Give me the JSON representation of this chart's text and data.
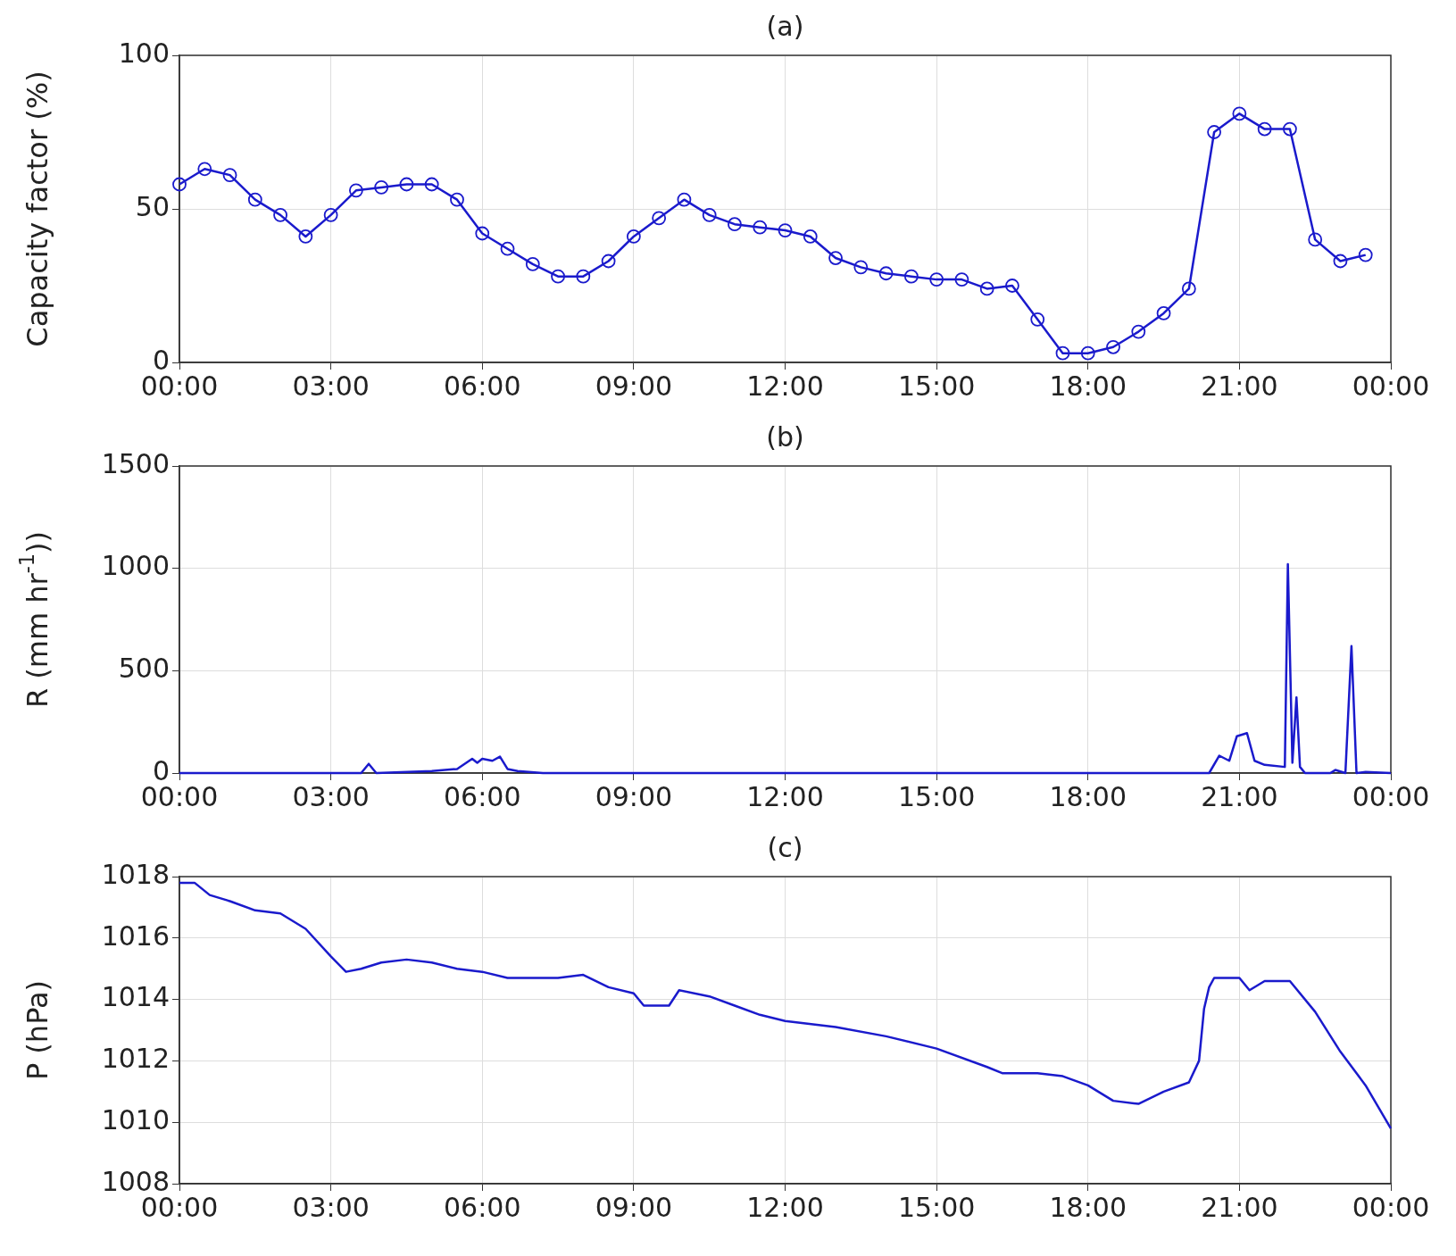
{
  "chart_data": [
    {
      "type": "line",
      "title": "(a)",
      "ylabel": "Capacity factor (%)",
      "xlim": [
        0,
        24
      ],
      "xticks": [
        {
          "value": 0,
          "label": "00:00"
        },
        {
          "value": 3,
          "label": "03:00"
        },
        {
          "value": 6,
          "label": "06:00"
        },
        {
          "value": 9,
          "label": "09:00"
        },
        {
          "value": 12,
          "label": "12:00"
        },
        {
          "value": 15,
          "label": "15:00"
        },
        {
          "value": 18,
          "label": "18:00"
        },
        {
          "value": 21,
          "label": "21:00"
        },
        {
          "value": 24,
          "label": "00:00"
        }
      ],
      "ylim": [
        0,
        100
      ],
      "yticks": [
        0,
        50,
        100
      ],
      "grid": true,
      "marker": "circle",
      "x": [
        0,
        0.5,
        1,
        1.5,
        2,
        2.5,
        3,
        3.5,
        4,
        4.5,
        5,
        5.5,
        6,
        6.5,
        7,
        7.5,
        8,
        8.5,
        9,
        9.5,
        10,
        10.5,
        11,
        11.5,
        12,
        12.5,
        13,
        13.5,
        14,
        14.5,
        15,
        15.5,
        16,
        16.5,
        17,
        17.5,
        18,
        18.5,
        19,
        19.5,
        20,
        20.5,
        21,
        21.5,
        22,
        22.5,
        23,
        23.5
      ],
      "series": [
        {
          "color": "#1a1acc",
          "values": [
            58,
            63,
            61,
            53,
            48,
            41,
            48,
            56,
            57,
            58,
            58,
            53,
            42,
            37,
            32,
            28,
            28,
            33,
            41,
            47,
            53,
            48,
            45,
            44,
            43,
            41,
            34,
            31,
            29,
            28,
            27,
            27,
            24,
            25,
            14,
            3,
            3,
            5,
            10,
            16,
            24,
            75,
            81,
            76,
            76,
            40,
            33,
            35
          ]
        }
      ]
    },
    {
      "type": "line",
      "title": "(b)",
      "ylabel": "R (mm hr$^{-1}$))",
      "xlim": [
        0,
        24
      ],
      "xticks": [
        {
          "value": 0,
          "label": "00:00"
        },
        {
          "value": 3,
          "label": "03:00"
        },
        {
          "value": 6,
          "label": "06:00"
        },
        {
          "value": 9,
          "label": "09:00"
        },
        {
          "value": 12,
          "label": "12:00"
        },
        {
          "value": 15,
          "label": "15:00"
        },
        {
          "value": 18,
          "label": "18:00"
        },
        {
          "value": 21,
          "label": "21:00"
        },
        {
          "value": 24,
          "label": "00:00"
        }
      ],
      "ylim": [
        0,
        1500
      ],
      "yticks": [
        0,
        500,
        1000,
        1500
      ],
      "grid": true,
      "marker": "none",
      "x": [
        0,
        2.5,
        3.6,
        3.75,
        3.9,
        5,
        5.5,
        5.8,
        5.9,
        6.0,
        6.2,
        6.35,
        6.5,
        6.7,
        7.2,
        7.5,
        12,
        16,
        20.4,
        20.6,
        20.8,
        20.95,
        21.15,
        21.3,
        21.5,
        21.9,
        21.96,
        22.05,
        22.13,
        22.2,
        22.3,
        22.8,
        22.9,
        23.1,
        23.22,
        23.32,
        23.5,
        24
      ],
      "series": [
        {
          "color": "#1a1acc",
          "values": [
            0,
            0,
            0,
            45,
            0,
            10,
            20,
            70,
            50,
            70,
            60,
            80,
            20,
            10,
            0,
            0,
            0,
            0,
            0,
            85,
            60,
            180,
            195,
            60,
            40,
            30,
            1020,
            50,
            370,
            30,
            0,
            0,
            15,
            0,
            620,
            0,
            5,
            0
          ]
        }
      ]
    },
    {
      "type": "line",
      "title": "(c)",
      "ylabel": "P (hPa)",
      "xlim": [
        0,
        24
      ],
      "xticks": [
        {
          "value": 0,
          "label": "00:00"
        },
        {
          "value": 3,
          "label": "03:00"
        },
        {
          "value": 6,
          "label": "06:00"
        },
        {
          "value": 9,
          "label": "09:00"
        },
        {
          "value": 12,
          "label": "12:00"
        },
        {
          "value": 15,
          "label": "15:00"
        },
        {
          "value": 18,
          "label": "18:00"
        },
        {
          "value": 21,
          "label": "21:00"
        },
        {
          "value": 24,
          "label": "00:00"
        }
      ],
      "ylim": [
        1008,
        1018
      ],
      "yticks": [
        1008,
        1010,
        1012,
        1014,
        1016,
        1018
      ],
      "grid": true,
      "marker": "none",
      "x": [
        0,
        0.3,
        0.6,
        1,
        1.5,
        2,
        2.5,
        3,
        3.3,
        3.6,
        4,
        4.5,
        5,
        5.5,
        6,
        6.5,
        7,
        7.5,
        8,
        8.5,
        9,
        9.2,
        9.7,
        9.9,
        10.5,
        11,
        11.5,
        12,
        13,
        14,
        15,
        16,
        16.3,
        17,
        17.5,
        18,
        18.5,
        19,
        19.5,
        20,
        20.2,
        20.3,
        20.4,
        20.5,
        21,
        21.2,
        21.5,
        22,
        22.5,
        23,
        23.5,
        24
      ],
      "series": [
        {
          "color": "#1a1acc",
          "values": [
            1017.8,
            1017.8,
            1017.4,
            1017.2,
            1016.9,
            1016.8,
            1016.3,
            1015.4,
            1014.9,
            1015.0,
            1015.2,
            1015.3,
            1015.2,
            1015.0,
            1014.9,
            1014.7,
            1014.7,
            1014.7,
            1014.8,
            1014.4,
            1014.2,
            1013.8,
            1013.8,
            1014.3,
            1014.1,
            1013.8,
            1013.5,
            1013.3,
            1013.1,
            1012.8,
            1012.4,
            1011.8,
            1011.6,
            1011.6,
            1011.5,
            1011.2,
            1010.7,
            1010.6,
            1011.0,
            1011.3,
            1012.0,
            1013.7,
            1014.4,
            1014.7,
            1014.7,
            1014.3,
            1014.6,
            1014.6,
            1013.6,
            1012.3,
            1011.2,
            1009.8
          ]
        }
      ]
    }
  ]
}
